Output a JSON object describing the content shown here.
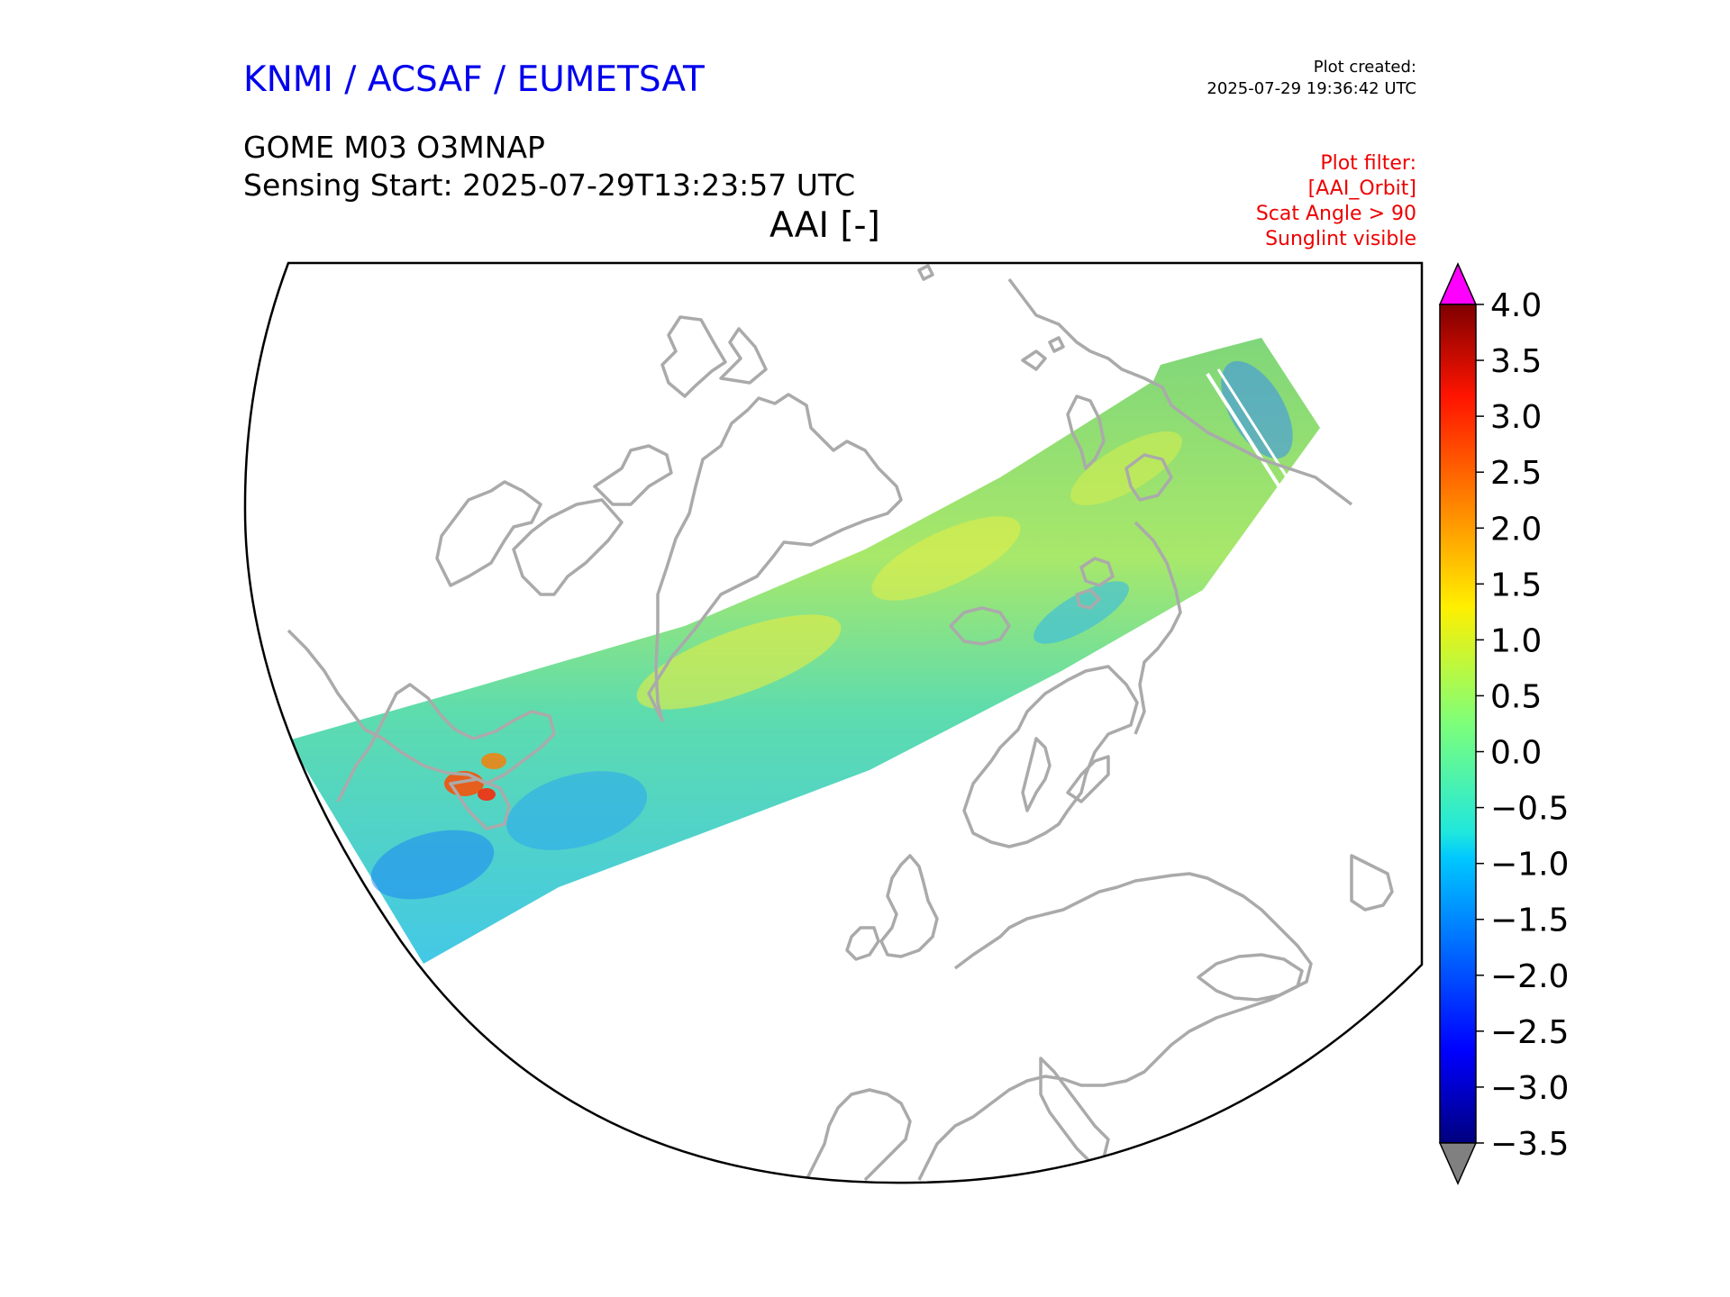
{
  "header": {
    "organization": "KNMI / ACSAF / EUMETSAT",
    "plot_created_label": "Plot created:",
    "plot_created_time": "2025-07-29 19:36:42 UTC",
    "product": "GOME M03 O3MNAP",
    "sensing_start": "Sensing Start: 2025-07-29T13:23:57 UTC",
    "variable": "AAI [-]"
  },
  "filter": {
    "lines": [
      "Plot filter:",
      "[AAI_Orbit]",
      "Scat Angle > 90",
      "Sunglint visible"
    ]
  },
  "colorbar": {
    "min": -3.5,
    "max": 4.0,
    "ticks": [
      "4.0",
      "3.5",
      "3.0",
      "2.5",
      "2.0",
      "1.5",
      "1.0",
      "0.5",
      "0.0",
      "−0.5",
      "−1.0",
      "−1.5",
      "−2.0",
      "−2.5",
      "−3.0",
      "−3.5"
    ],
    "over_color": "#ff00ff",
    "under_color": "#808080",
    "colormap": "jet"
  },
  "colors": {
    "org_title": "#0000ee",
    "filter_text": "#ee0000",
    "coastline": "#aaaaaa",
    "frame": "#000000"
  }
}
